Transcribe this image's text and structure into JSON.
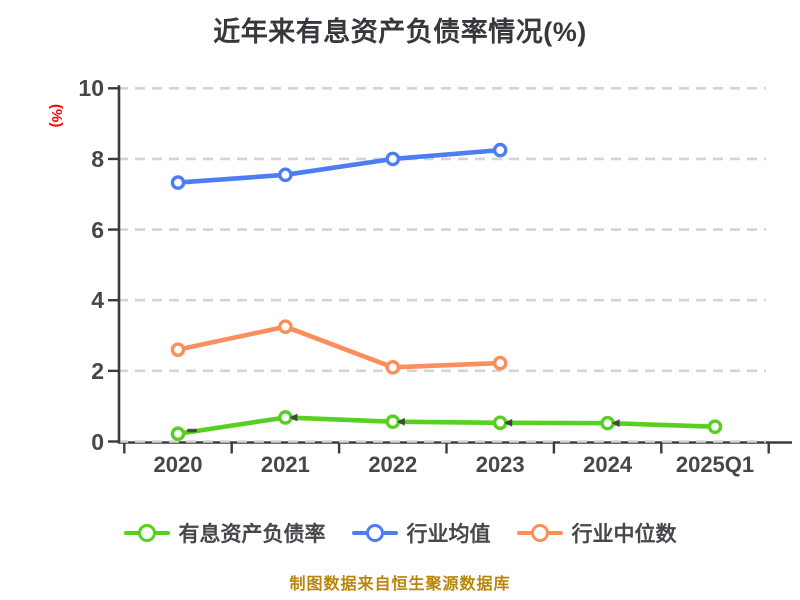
{
  "chart_data": {
    "type": "line",
    "title": "近年来有息资产负债率情况(%)",
    "ylabel": "(%)",
    "xlabel": "",
    "categories": [
      "2020",
      "2021",
      "2022",
      "2023",
      "2024",
      "2025Q1"
    ],
    "series": [
      {
        "name": "有息资产负债率",
        "color": "#58cf22",
        "values": [
          0.22,
          0.68,
          0.56,
          0.53,
          0.52,
          0.42
        ]
      },
      {
        "name": "行业均值",
        "color": "#4d7df2",
        "values": [
          7.33,
          7.55,
          8.0,
          8.25,
          null,
          null
        ]
      },
      {
        "name": "行业中位数",
        "color": "#fb8e5c",
        "values": [
          2.6,
          3.25,
          2.1,
          2.22,
          null,
          null
        ]
      }
    ],
    "ylim": [
      0,
      10
    ],
    "yticks": [
      0,
      2,
      4,
      6,
      8,
      10
    ],
    "grid": "horizontal dashed",
    "legend_position": "bottom",
    "marker_style": "circle, white fill, colored ring"
  },
  "footer": {
    "note": "制图数据来自恒生聚源数据库"
  },
  "colors": {
    "title": "#38383c",
    "ylabel": "#ff0000",
    "footer": "#b8860b",
    "grid": "#d4d4d4",
    "axis": "#3c3c40",
    "tick_text": "#47474b"
  }
}
